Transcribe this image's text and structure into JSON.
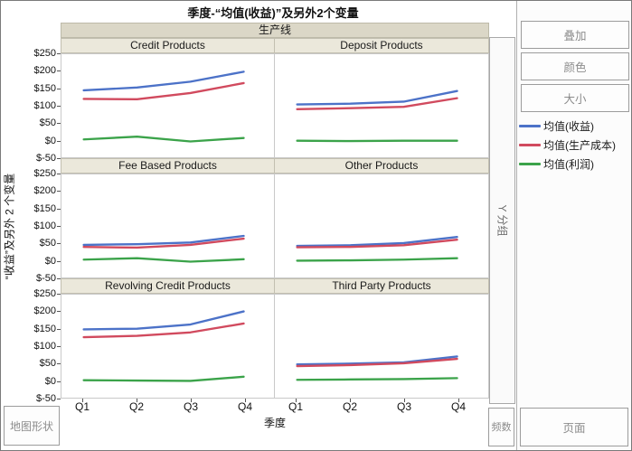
{
  "title": "季度-“均值(收益)”及另外2个变量",
  "trellis": {
    "group_label": "生产线",
    "x_axis": {
      "label": "季度",
      "ticks": [
        "Q1",
        "Q2",
        "Q3",
        "Q4"
      ]
    },
    "y_axis": {
      "label": "“收益”及另外 2 个变量",
      "tick_labels": [
        "$250",
        "$200",
        "$150",
        "$100",
        "$50",
        "$0",
        "$-50"
      ],
      "min": -50,
      "max": 250
    }
  },
  "chart_data": {
    "type": "line",
    "categories": [
      "Q1",
      "Q2",
      "Q3",
      "Q4"
    ],
    "ylim": [
      -50,
      250
    ],
    "y_tick_step": 50,
    "xlabel": "季度",
    "ylabel": "“收益”及另外 2 个变量",
    "grid": false,
    "legend_position": "right",
    "series_names": [
      "均值(收益)",
      "均值(生产成本)",
      "均值(利润)"
    ],
    "series_colors": [
      "#4c72c8",
      "#d14a5e",
      "#3ba34a"
    ],
    "panels": [
      {
        "title": "Credit Products",
        "series": [
          {
            "name": "均值(收益)",
            "values": [
              145,
              153,
              170,
              199
            ]
          },
          {
            "name": "均值(生产成本)",
            "values": [
              120,
              119,
              137,
              166
            ]
          },
          {
            "name": "均值(利润)",
            "values": [
              2,
              10,
              -4,
              6
            ]
          }
        ]
      },
      {
        "title": "Deposit Products",
        "series": [
          {
            "name": "均值(收益)",
            "values": [
              104,
              106,
              112,
              143
            ]
          },
          {
            "name": "均值(生产成本)",
            "values": [
              90,
              93,
              97,
              122
            ]
          },
          {
            "name": "均值(利润)",
            "values": [
              -2,
              -3,
              -2,
              -2
            ]
          }
        ]
      },
      {
        "title": "Fee Based Products",
        "series": [
          {
            "name": "均值(收益)",
            "values": [
              45,
              47,
              52,
              71
            ]
          },
          {
            "name": "均值(生产成本)",
            "values": [
              39,
              37,
              45,
              63
            ]
          },
          {
            "name": "均值(利润)",
            "values": [
              2,
              6,
              -4,
              3
            ]
          }
        ]
      },
      {
        "title": "Other Products",
        "series": [
          {
            "name": "均值(收益)",
            "values": [
              42,
              44,
              50,
              68
            ]
          },
          {
            "name": "均值(生产成本)",
            "values": [
              38,
              39,
              44,
              60
            ]
          },
          {
            "name": "均值(利润)",
            "values": [
              -1,
              0,
              2,
              6
            ]
          }
        ]
      },
      {
        "title": "Revolving Credit Products",
        "series": [
          {
            "name": "均值(收益)",
            "values": [
              149,
              151,
              163,
              201
            ]
          },
          {
            "name": "均值(生产成本)",
            "values": [
              126,
              130,
              140,
              166
            ]
          },
          {
            "name": "均值(利润)",
            "values": [
              1,
              0,
              -1,
              11
            ]
          }
        ]
      },
      {
        "title": "Third Party Products",
        "series": [
          {
            "name": "均值(收益)",
            "values": [
              47,
              49,
              53,
              70
            ]
          },
          {
            "name": "均值(生产成本)",
            "values": [
              42,
              45,
              50,
              63
            ]
          },
          {
            "name": "均值(利润)",
            "values": [
              2,
              3,
              4,
              7
            ]
          }
        ]
      }
    ]
  },
  "legend": {
    "items": [
      {
        "label": "均值(收益)",
        "color": "#4c72c8"
      },
      {
        "label": "均值(生产成本)",
        "color": "#d14a5e"
      },
      {
        "label": "均值(利润)",
        "color": "#3ba34a"
      }
    ]
  },
  "right_panel": {
    "buttons": [
      {
        "label": "叠加"
      },
      {
        "label": "颜色"
      },
      {
        "label": "大小"
      }
    ]
  },
  "drop_zones": {
    "y_group": "Y 分组",
    "frequency": "频数",
    "page": "页面",
    "map_shape": "地图形状"
  }
}
